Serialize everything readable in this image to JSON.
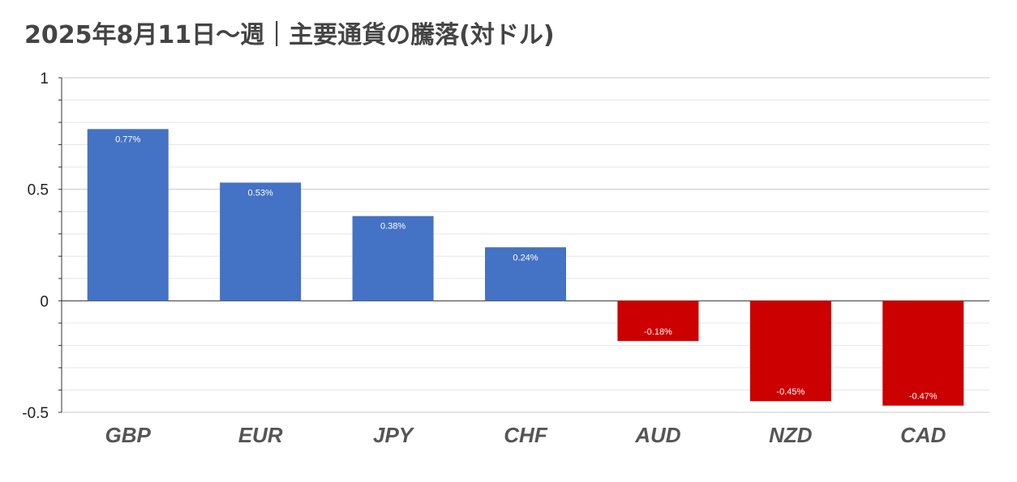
{
  "chart_data": {
    "type": "bar",
    "title": "2025年8月11日〜週｜主要通貨の騰落(対ドル)",
    "xlabel": "",
    "ylabel": "",
    "categories": [
      "GBP",
      "EUR",
      "JPY",
      "CHF",
      "AUD",
      "NZD",
      "CAD"
    ],
    "values": [
      0.77,
      0.53,
      0.38,
      0.24,
      -0.18,
      -0.45,
      -0.47
    ],
    "data_labels": [
      "0.77%",
      "0.53%",
      "0.38%",
      "0.24%",
      "-0.18%",
      "-0.45%",
      "-0.47%"
    ],
    "ylim": [
      -0.5,
      1
    ],
    "yticks": [
      1,
      0.5,
      0,
      -0.5
    ],
    "ytick_labels": [
      "1",
      "0.5",
      "0",
      "-0.5"
    ],
    "grid": true,
    "legend": "none",
    "colors": {
      "positive": "#4472c4",
      "negative": "#cc0000"
    }
  }
}
